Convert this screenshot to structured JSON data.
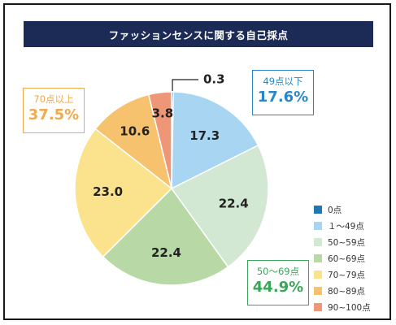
{
  "title": "ファッションセンスに関する自己採点",
  "chart_data": {
    "type": "pie",
    "categories": [
      "0点",
      "１～49点",
      "50~59点",
      "60~69点",
      "70~79点",
      "80~89点",
      "90~100点"
    ],
    "values": [
      0.3,
      17.3,
      22.4,
      22.4,
      23.0,
      10.6,
      3.8
    ],
    "value_labels": [
      "0.3",
      "17.3",
      "22.4",
      "22.4",
      "23.0",
      "10.6",
      "3.8"
    ],
    "colors": [
      "#1f77b4",
      "#a8d5f2",
      "#d3e8d2",
      "#b8d9a6",
      "#fbe38e",
      "#f7c26d",
      "#ee9676"
    ],
    "legend_position": "right",
    "groups": [
      {
        "label": "49点以下",
        "value": "17.6%",
        "color": "#2b86c5"
      },
      {
        "label": "50～69点",
        "value": "44.9%",
        "color": "#3aa65a"
      },
      {
        "label": "70点以上",
        "value": "37.5%",
        "color": "#f0a94b"
      }
    ]
  }
}
